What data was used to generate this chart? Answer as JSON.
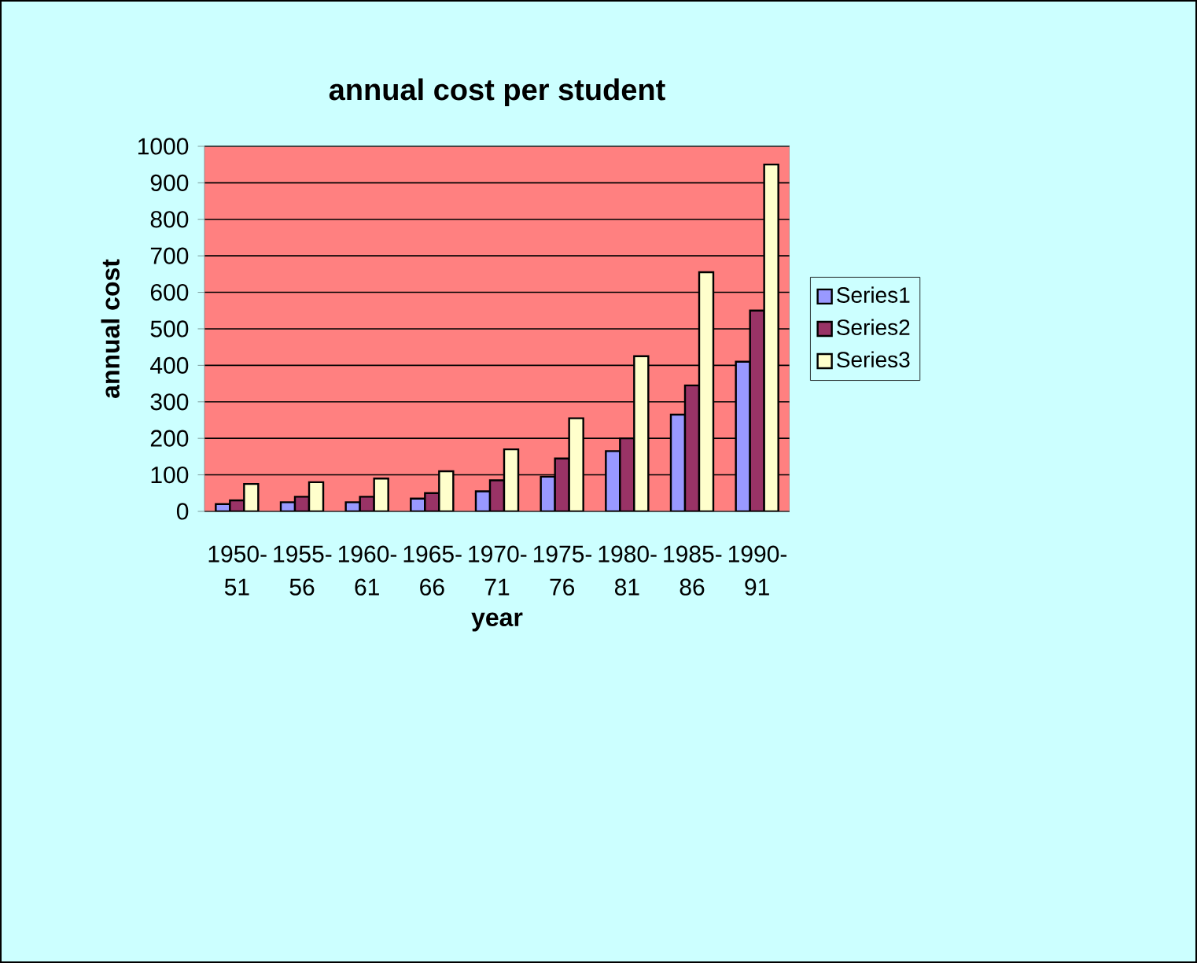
{
  "chart_data": {
    "type": "bar",
    "title": "annual cost per student",
    "xlabel": "year",
    "ylabel": "annual cost",
    "categories": [
      "1950-51",
      "1955-56",
      "1960-61",
      "1965-66",
      "1970-71",
      "1975-76",
      "1980-81",
      "1985-86",
      "1990-91"
    ],
    "series": [
      {
        "name": "Series1",
        "color": "#9999ff",
        "values": [
          20,
          25,
          25,
          35,
          55,
          95,
          165,
          265,
          410
        ]
      },
      {
        "name": "Series2",
        "color": "#993366",
        "values": [
          30,
          40,
          40,
          50,
          85,
          145,
          200,
          345,
          550
        ]
      },
      {
        "name": "Series3",
        "color": "#ffffcc",
        "values": [
          75,
          80,
          90,
          110,
          170,
          255,
          425,
          655,
          950
        ]
      }
    ],
    "ylim": [
      0,
      1000
    ],
    "yticks": [
      0,
      100,
      200,
      300,
      400,
      500,
      600,
      700,
      800,
      900,
      1000
    ],
    "grid": "y",
    "legend": "right"
  }
}
